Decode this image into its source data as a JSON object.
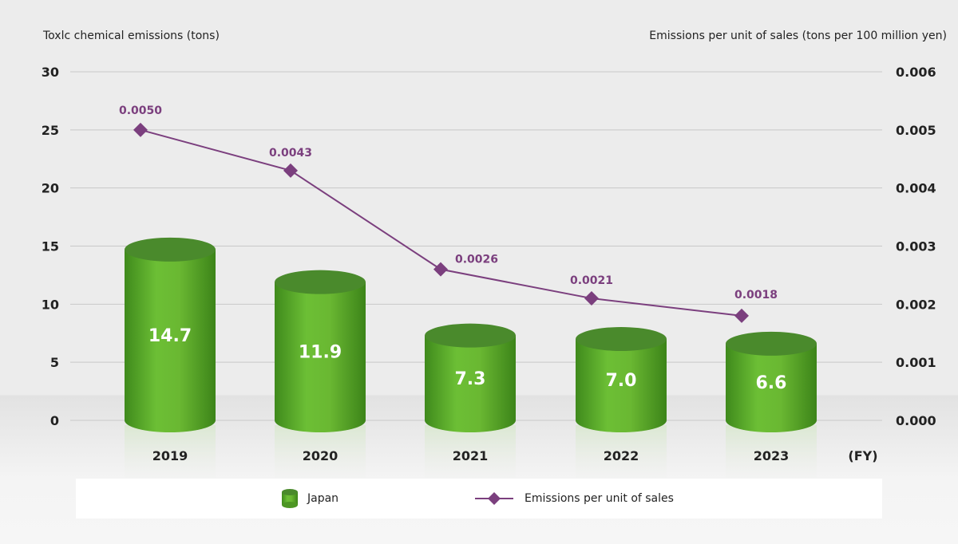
{
  "chart_data": {
    "type": "bar",
    "categories": [
      "2019",
      "2020",
      "2021",
      "2022",
      "2023"
    ],
    "x_unit_label": "(FY)",
    "series": [
      {
        "name": "Japan",
        "kind": "bar",
        "axis": "left",
        "values": [
          14.7,
          11.9,
          7.3,
          7.0,
          6.6
        ],
        "labels": [
          "14.7",
          "11.9",
          "7.3",
          "7.0",
          "6.6"
        ],
        "color": "#5aa82a"
      },
      {
        "name": "Emissions per unit of sales",
        "kind": "line",
        "axis": "right",
        "values": [
          0.005,
          0.0043,
          0.0026,
          0.0021,
          0.0018
        ],
        "labels": [
          "0.0050",
          "0.0043",
          "0.0026",
          "0.0021",
          "0.0018"
        ],
        "color": "#7b3f7e"
      }
    ],
    "y_left": {
      "label": "Toxlc chemical emissions (tons)",
      "range": [
        0,
        30
      ],
      "ticks": [
        "0",
        "5",
        "10",
        "15",
        "20",
        "25",
        "30"
      ]
    },
    "y_right": {
      "label": "Emissions per unit of sales (tons per 100 million yen)",
      "range": [
        0,
        0.006
      ],
      "ticks": [
        "0.000",
        "0.001",
        "0.002",
        "0.003",
        "0.004",
        "0.005",
        "0.006"
      ]
    },
    "grid": true,
    "legend_position": "bottom"
  },
  "colors": {
    "bar_body": "#5aa82a",
    "bar_top": "#4a8a2c",
    "line": "#7b3f7e",
    "grid": "#c8c8c8"
  }
}
